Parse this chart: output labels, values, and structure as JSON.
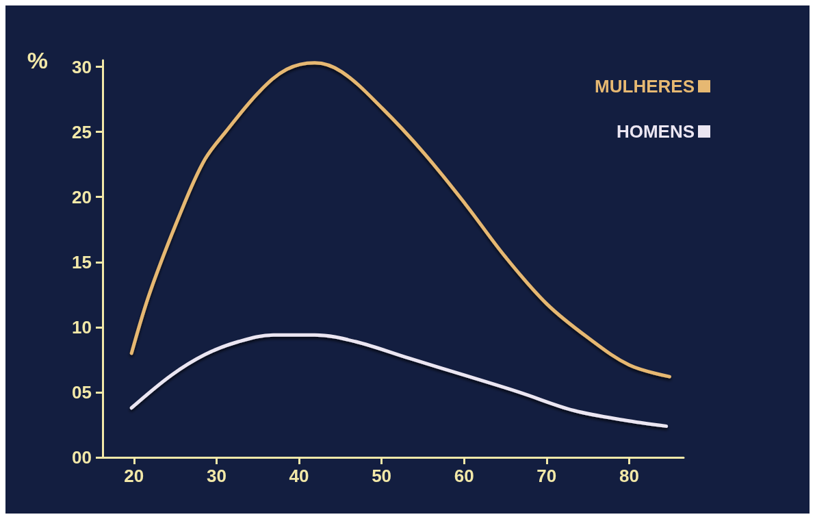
{
  "chart_data": {
    "type": "line",
    "ylabel": "%",
    "xlim": [
      16.2,
      86.6
    ],
    "ylim": [
      0,
      30.5
    ],
    "xticks": [
      20,
      30,
      40,
      50,
      60,
      70,
      80
    ],
    "yticks": [
      {
        "value": 0,
        "label": "00"
      },
      {
        "value": 5,
        "label": "05"
      },
      10,
      15,
      20,
      25,
      30
    ],
    "grid": false,
    "legend": "top right",
    "marker": "none",
    "line_style": "solid",
    "series": [
      {
        "name": "MULHERES",
        "color": "#e6b872",
        "x": [
          19.7,
          22,
          26.1,
          28.6,
          31.1,
          35.2,
          38.5,
          41.9,
          45.2,
          50.1,
          55.1,
          60.1,
          65,
          70,
          75,
          80,
          84.9
        ],
        "values": [
          8.0,
          12.8,
          19.5,
          22.9,
          25.0,
          28.1,
          29.8,
          30.3,
          29.6,
          26.8,
          23.4,
          19.5,
          15.4,
          11.8,
          9.2,
          7.1,
          6.2
        ]
      },
      {
        "name": "HOMENS",
        "color": "#ebe6f2",
        "x": [
          19.7,
          24.5,
          28.6,
          32.7,
          36.9,
          41.9,
          46.8,
          53.4,
          60.1,
          66.7,
          73.3,
          80,
          84.5
        ],
        "values": [
          3.8,
          6.3,
          7.9,
          8.9,
          9.4,
          9.4,
          8.9,
          7.6,
          6.3,
          5.0,
          3.6,
          2.8,
          2.4
        ]
      }
    ]
  }
}
